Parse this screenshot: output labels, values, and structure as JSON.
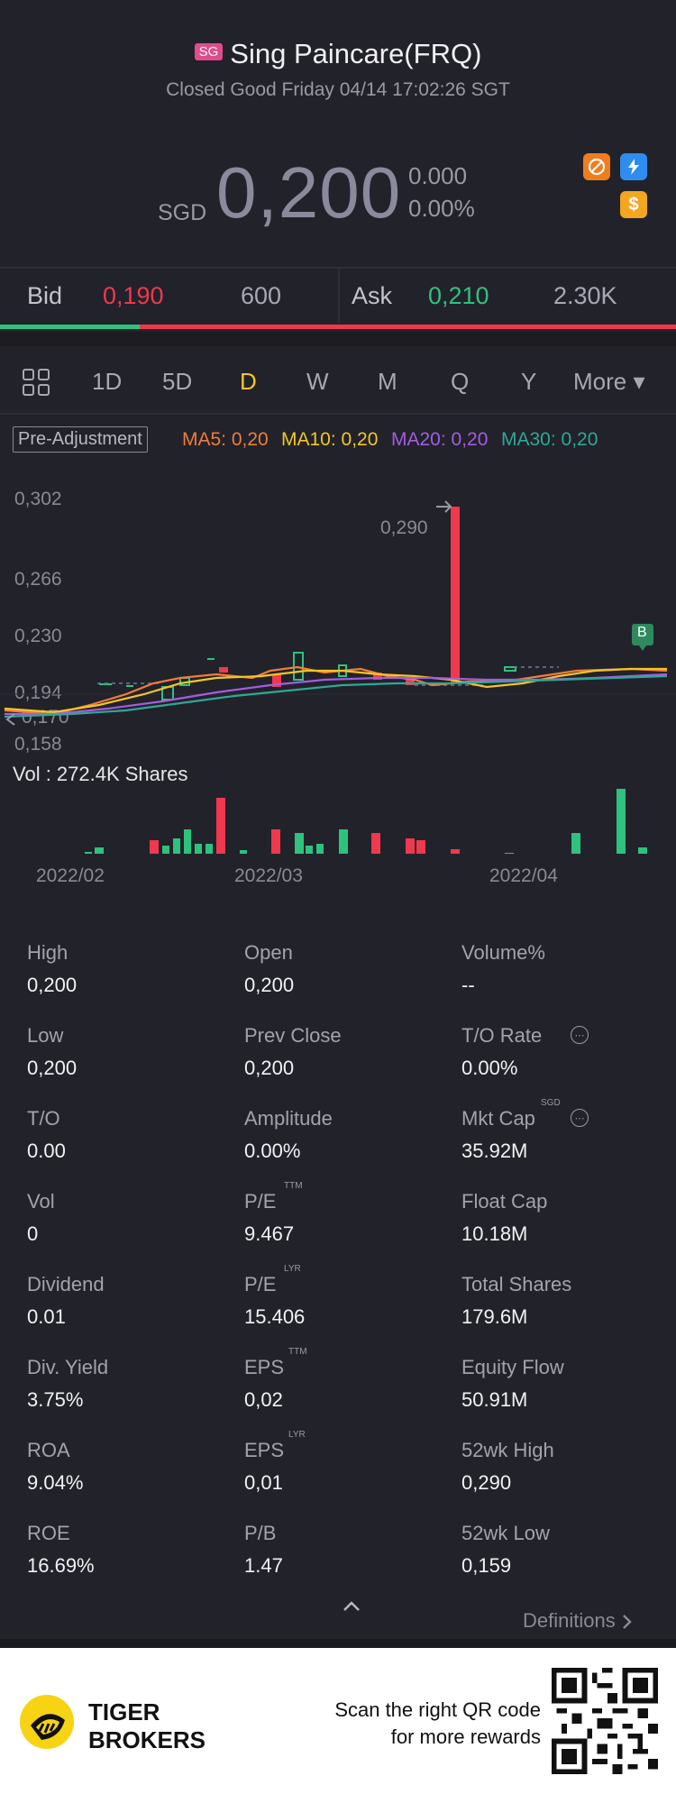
{
  "header": {
    "market_badge": "SG",
    "title": "Sing Paincare(FRQ)",
    "status": "Closed Good Friday 04/14 17:02:26 SGT",
    "currency": "SGD",
    "price": "0,200",
    "change": "0.000",
    "change_pct": "0.00%",
    "icons": [
      "no-short-icon",
      "lightning-icon",
      "dollar-icon"
    ]
  },
  "quote": {
    "bid_label": "Bid",
    "bid_price": "0,190",
    "bid_size": "600",
    "ask_label": "Ask",
    "ask_price": "0,210",
    "ask_size": "2.30K"
  },
  "periods": [
    "1D",
    "5D",
    "D",
    "W",
    "M",
    "Q",
    "Y",
    "More ▾"
  ],
  "active_period": "D",
  "indicators": {
    "pre_adjustment": "Pre-Adjustment",
    "ma5": "MA5: 0,20",
    "ma10": "MA10: 0,20",
    "ma20": "MA20: 0,20",
    "ma30": "MA30: 0,20"
  },
  "colors": {
    "up": "#2ec27e",
    "down": "#f0384f",
    "ma5": "#f07d3a",
    "ma10": "#f3c623",
    "ma20": "#a55ce0",
    "ma30": "#2ea898"
  },
  "chart_data": {
    "type": "candlestick",
    "y_ticks": [
      "0,302",
      "0,266",
      "0,230",
      "0,194",
      "0,170",
      "0,158"
    ],
    "x_ticks": [
      "2022/02",
      "2022/03",
      "2022/04"
    ],
    "max_annotation": "0,290",
    "marker": "B",
    "volume_label": "Vol  : 272.4K Shares",
    "ylim": [
      0.158,
      0.302
    ]
  },
  "stats": [
    {
      "label": "High",
      "value": "0,200"
    },
    {
      "label": "Open",
      "value": "0,200"
    },
    {
      "label": "Volume%",
      "value": "--"
    },
    {
      "label": "Low",
      "value": "0,200"
    },
    {
      "label": "Prev Close",
      "value": "0,200"
    },
    {
      "label": "T/O Rate",
      "value": "0.00%"
    },
    {
      "label": "T/O",
      "value": "0.00"
    },
    {
      "label": "Amplitude",
      "value": "0.00%"
    },
    {
      "label": "Mkt Cap",
      "value": "35.92M",
      "sup": "SGD"
    },
    {
      "label": "Vol",
      "value": "0"
    },
    {
      "label": "P/E",
      "value": "9.467",
      "sup": "TTM"
    },
    {
      "label": "Float Cap",
      "value": "10.18M"
    },
    {
      "label": "Dividend",
      "value": "0.01"
    },
    {
      "label": "P/E",
      "value": "15.406",
      "sup": "LYR"
    },
    {
      "label": "Total Shares",
      "value": "179.6M"
    },
    {
      "label": "Div. Yield",
      "value": "3.75%"
    },
    {
      "label": "EPS",
      "value": "0,02",
      "sup": "TTM"
    },
    {
      "label": "Equity Flow",
      "value": "50.91M"
    },
    {
      "label": "ROA",
      "value": "9.04%"
    },
    {
      "label": "EPS",
      "value": "0,01",
      "sup": "LYR"
    },
    {
      "label": "52wk High",
      "value": "0,290"
    },
    {
      "label": "ROE",
      "value": "16.69%"
    },
    {
      "label": "P/B",
      "value": "1.47"
    },
    {
      "label": "52wk Low",
      "value": "0,159"
    }
  ],
  "definitions": "Definitions",
  "footer": {
    "brand_line1": "TIGER",
    "brand_line2": "BROKERS",
    "promo_line1": "Scan the right QR code",
    "promo_line2": "for more rewards"
  }
}
